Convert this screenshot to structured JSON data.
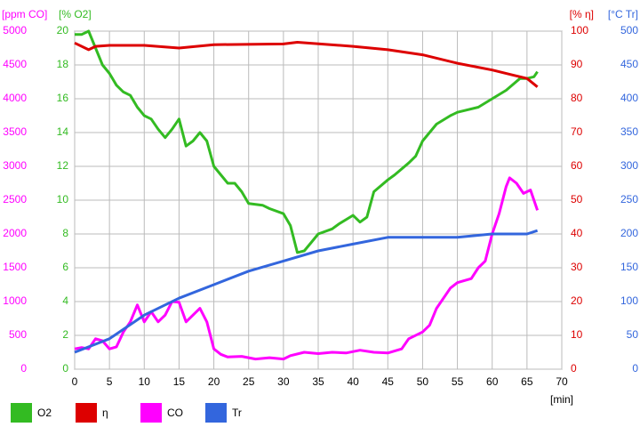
{
  "chart_data": {
    "type": "line",
    "xlabel": "[min]",
    "xlim": [
      0,
      70
    ],
    "xticks": [
      0,
      5,
      10,
      15,
      20,
      25,
      30,
      35,
      40,
      45,
      50,
      55,
      60,
      65,
      70
    ],
    "ylabel": "[ppm CO]",
    "ylim": [
      0,
      5000
    ],
    "yticks": [
      0,
      500,
      1000,
      1500,
      2000,
      2500,
      3000,
      3500,
      4000,
      4500,
      5000
    ],
    "y2label": "[% O2]",
    "y2lim": [
      0,
      20
    ],
    "y2ticks": [
      0,
      2,
      4,
      6,
      8,
      10,
      12,
      14,
      16,
      18,
      20
    ],
    "y3label": "[% η]",
    "y3lim": [
      0,
      100
    ],
    "y3ticks": [
      0,
      10,
      20,
      30,
      40,
      50,
      60,
      70,
      80,
      90,
      100
    ],
    "y4label": "[°C Tr]",
    "y4lim": [
      0,
      500
    ],
    "y4ticks": [
      0,
      50,
      100,
      150,
      200,
      250,
      300,
      350,
      400,
      450,
      500
    ],
    "grid": true,
    "series": [
      {
        "name": "O2",
        "color": "#33bb22",
        "axis": "y2",
        "x": [
          0,
          1,
          2,
          3,
          4,
          5,
          6,
          7,
          8,
          9,
          10,
          11,
          12,
          13,
          14,
          15,
          16,
          17,
          18,
          19,
          20,
          21,
          22,
          23,
          24,
          25,
          27,
          28,
          30,
          31,
          32,
          33,
          34,
          35,
          37,
          38,
          40,
          41,
          42,
          43,
          45,
          46,
          48,
          49,
          50,
          52,
          54,
          55,
          56,
          58,
          60,
          62,
          64,
          65,
          66,
          66.5
        ],
        "values": [
          19.8,
          19.8,
          20,
          19,
          18,
          17.5,
          16.8,
          16.4,
          16.2,
          15.5,
          15,
          14.8,
          14.2,
          13.7,
          14.2,
          14.8,
          13.2,
          13.5,
          14,
          13.5,
          12,
          11.5,
          11,
          11,
          10.5,
          9.8,
          9.7,
          9.5,
          9.2,
          8.5,
          6.9,
          7,
          7.5,
          8,
          8.3,
          8.6,
          9.1,
          8.7,
          9,
          10.5,
          11.2,
          11.5,
          12.2,
          12.6,
          13.5,
          14.5,
          15,
          15.2,
          15.3,
          15.5,
          16,
          16.5,
          17.2,
          17.2,
          17.3,
          17.6
        ]
      },
      {
        "name": "η",
        "color": "#dd0000",
        "axis": "y3",
        "x": [
          0,
          2,
          3,
          5,
          10,
          15,
          20,
          30,
          32,
          40,
          45,
          50,
          55,
          60,
          63,
          65,
          66.5
        ],
        "values": [
          96.5,
          94.5,
          95.5,
          95.8,
          95.8,
          95,
          96,
          96.2,
          96.7,
          95.5,
          94.5,
          93,
          90.5,
          88.5,
          87,
          86,
          83.5
        ]
      },
      {
        "name": "CO",
        "color": "#ff00ff",
        "axis": "y",
        "x": [
          0,
          1,
          2,
          3,
          4,
          5,
          6,
          7,
          8,
          9,
          10,
          11,
          12,
          13,
          14,
          15,
          16,
          17,
          18,
          19,
          20,
          21,
          22,
          24,
          26,
          28,
          30,
          31,
          33,
          35,
          37,
          39,
          41,
          43,
          45,
          47,
          48,
          50,
          51,
          52,
          54,
          55,
          57,
          58,
          59,
          60,
          61,
          62,
          62.5,
          63.5,
          64.5,
          65.5,
          66.5
        ],
        "values": [
          300,
          320,
          300,
          450,
          420,
          300,
          330,
          550,
          700,
          950,
          700,
          850,
          700,
          800,
          1000,
          990,
          700,
          800,
          900,
          700,
          300,
          220,
          180,
          190,
          150,
          170,
          150,
          200,
          250,
          230,
          250,
          240,
          280,
          250,
          240,
          300,
          450,
          550,
          650,
          900,
          1200,
          1280,
          1340,
          1500,
          1600,
          2000,
          2300,
          2700,
          2830,
          2750,
          2600,
          2650,
          2350
        ]
      },
      {
        "name": "Tr",
        "color": "#3366dd",
        "axis": "y4",
        "x": [
          0,
          5,
          10,
          15,
          20,
          25,
          30,
          35,
          40,
          45,
          50,
          55,
          60,
          65,
          66.5
        ],
        "values": [
          25,
          45,
          80,
          105,
          125,
          145,
          160,
          175,
          185,
          195,
          195,
          195,
          200,
          200,
          205
        ]
      }
    ]
  }
}
